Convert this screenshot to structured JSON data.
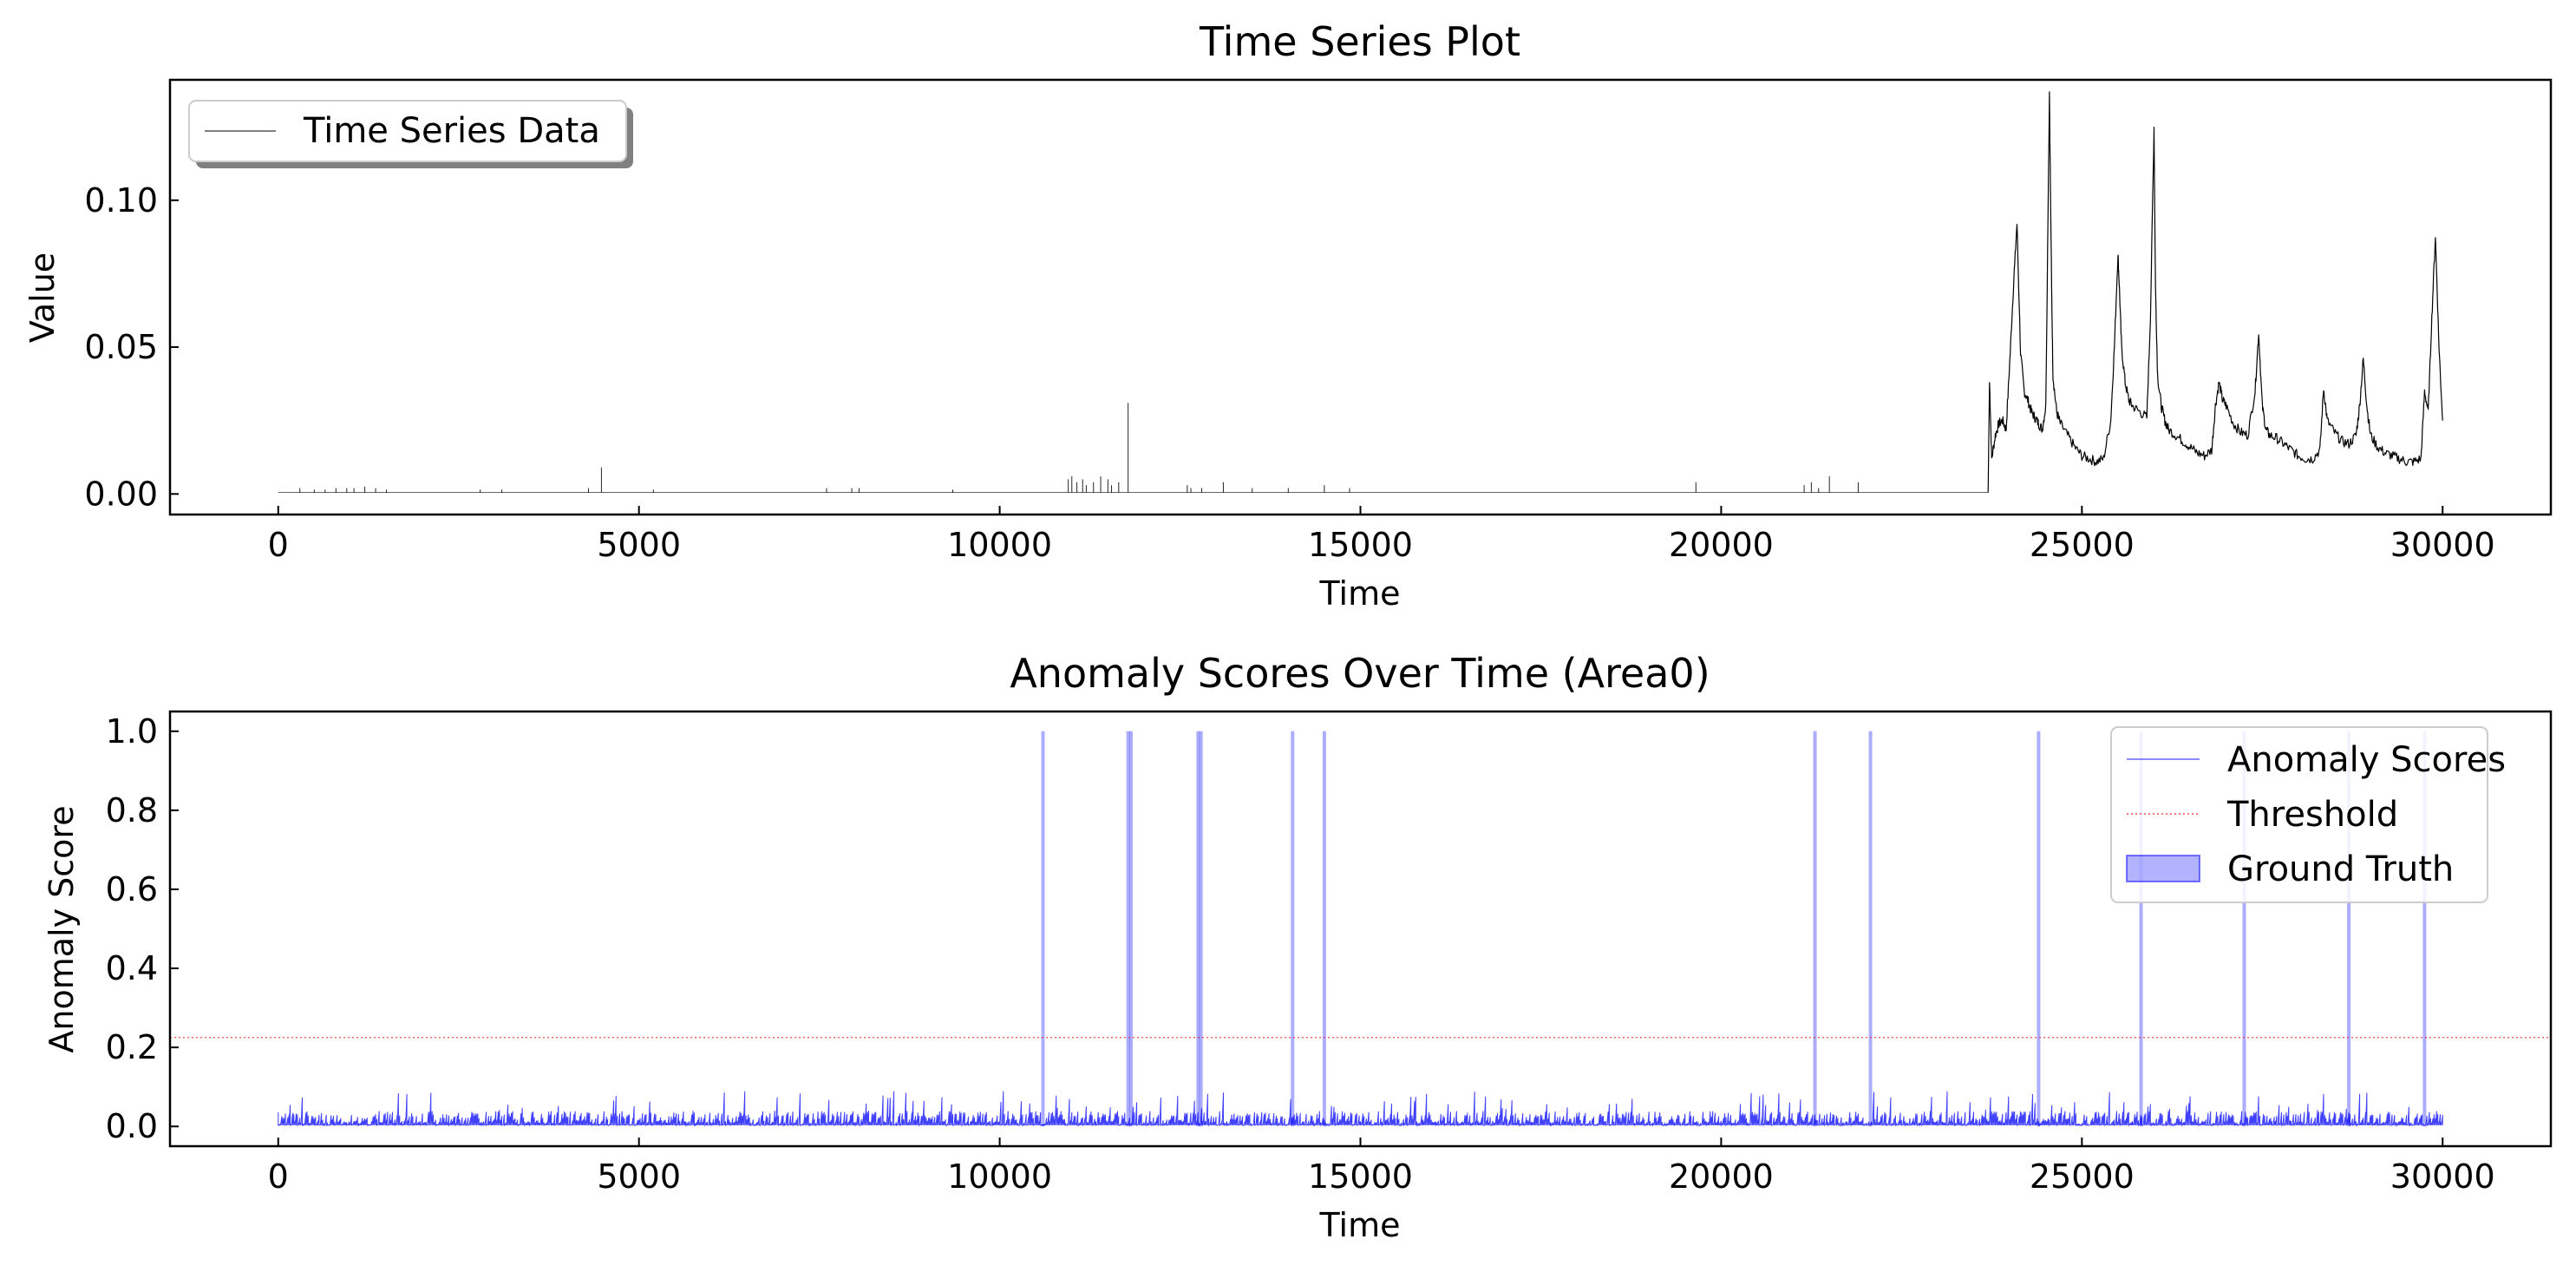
{
  "chart_data": [
    {
      "type": "line",
      "title": "Time Series Plot",
      "xlabel": "Time",
      "ylabel": "Value",
      "xlim": [
        -1500,
        31500
      ],
      "ylim": [
        -0.007,
        0.141
      ],
      "xticks": [
        0,
        5000,
        10000,
        15000,
        20000,
        25000,
        30000
      ],
      "yticks": [
        0.0,
        0.05,
        0.1
      ],
      "ytick_labels": [
        "0.00",
        "0.05",
        "0.10"
      ],
      "legend": {
        "position": "top-left",
        "shadow": true
      },
      "series": [
        {
          "name": "Time Series Data",
          "color": "#000000",
          "baseline": 0.0005,
          "spikes": [
            [
              300,
              0.002
            ],
            [
              500,
              0.0015
            ],
            [
              650,
              0.0015
            ],
            [
              800,
              0.002
            ],
            [
              950,
              0.002
            ],
            [
              1050,
              0.002
            ],
            [
              1200,
              0.0025
            ],
            [
              1350,
              0.002
            ],
            [
              1500,
              0.0015
            ],
            [
              2800,
              0.0015
            ],
            [
              3100,
              0.0015
            ],
            [
              4300,
              0.002
            ],
            [
              4480,
              0.009
            ],
            [
              5200,
              0.0015
            ],
            [
              7600,
              0.002
            ],
            [
              7950,
              0.002
            ],
            [
              8050,
              0.002
            ],
            [
              9350,
              0.0015
            ],
            [
              10950,
              0.005
            ],
            [
              11000,
              0.006
            ],
            [
              11070,
              0.004
            ],
            [
              11150,
              0.005
            ],
            [
              11200,
              0.003
            ],
            [
              11300,
              0.004
            ],
            [
              11400,
              0.006
            ],
            [
              11500,
              0.005
            ],
            [
              11550,
              0.003
            ],
            [
              11650,
              0.004
            ],
            [
              11780,
              0.031
            ],
            [
              12600,
              0.003
            ],
            [
              12650,
              0.002
            ],
            [
              12800,
              0.002
            ],
            [
              13100,
              0.004
            ],
            [
              13500,
              0.002
            ],
            [
              14000,
              0.002
            ],
            [
              14500,
              0.003
            ],
            [
              14850,
              0.002
            ],
            [
              19650,
              0.004
            ],
            [
              21150,
              0.003
            ],
            [
              21250,
              0.004
            ],
            [
              21350,
              0.002
            ],
            [
              21500,
              0.006
            ],
            [
              21900,
              0.004
            ]
          ],
          "x": [
            23700,
            23720,
            23750,
            23800,
            23850,
            23900,
            23950,
            24000,
            24050,
            24100,
            24150,
            24200,
            24250,
            24300,
            24350,
            24400,
            24450,
            24500,
            24550,
            24580,
            24600,
            24650,
            24700,
            24800,
            24900,
            25000,
            25100,
            25200,
            25300,
            25400,
            25450,
            25500,
            25520,
            25550,
            25600,
            25650,
            25700,
            25800,
            25900,
            25950,
            26000,
            26020,
            26050,
            26100,
            26150,
            26200,
            26300,
            26400,
            26500,
            26600,
            26700,
            26800,
            26850,
            26900,
            26950,
            27000,
            27100,
            27200,
            27300,
            27400,
            27450,
            27500,
            27550,
            27600,
            27700,
            27800,
            27900,
            28000,
            28100,
            28200,
            28300,
            28350,
            28400,
            28500,
            28600,
            28700,
            28800,
            28850,
            28900,
            28950,
            29000,
            29100,
            29200,
            29300,
            29400,
            29500,
            29600,
            29700,
            29750,
            29800,
            29850,
            29900,
            29950,
            30000
          ],
          "y": [
            0.0005,
            0.038,
            0.012,
            0.02,
            0.024,
            0.025,
            0.022,
            0.045,
            0.07,
            0.092,
            0.048,
            0.035,
            0.032,
            0.028,
            0.026,
            0.024,
            0.022,
            0.03,
            0.137,
            0.07,
            0.04,
            0.028,
            0.024,
            0.02,
            0.016,
            0.013,
            0.012,
            0.011,
            0.012,
            0.025,
            0.05,
            0.082,
            0.07,
            0.05,
            0.038,
            0.032,
            0.03,
            0.028,
            0.026,
            0.06,
            0.125,
            0.07,
            0.04,
            0.03,
            0.025,
            0.022,
            0.02,
            0.018,
            0.016,
            0.014,
            0.013,
            0.015,
            0.03,
            0.038,
            0.032,
            0.03,
            0.024,
            0.021,
            0.02,
            0.035,
            0.055,
            0.03,
            0.022,
            0.02,
            0.019,
            0.017,
            0.015,
            0.013,
            0.012,
            0.012,
            0.015,
            0.036,
            0.025,
            0.021,
            0.018,
            0.017,
            0.02,
            0.03,
            0.046,
            0.03,
            0.02,
            0.016,
            0.014,
            0.013,
            0.012,
            0.011,
            0.011,
            0.012,
            0.035,
            0.028,
            0.06,
            0.088,
            0.05,
            0.025
          ]
        }
      ]
    },
    {
      "type": "line",
      "title": "Anomaly Scores Over Time (Area0)",
      "xlabel": "Time",
      "ylabel": "Anomaly Score",
      "xlim": [
        -1500,
        31500
      ],
      "ylim": [
        -0.05,
        1.05
      ],
      "xticks": [
        0,
        5000,
        10000,
        15000,
        20000,
        25000,
        30000
      ],
      "yticks": [
        0.0,
        0.2,
        0.4,
        0.6,
        0.8,
        1.0
      ],
      "ytick_labels": [
        "0.0",
        "0.2",
        "0.4",
        "0.6",
        "0.8",
        "1.0"
      ],
      "legend": {
        "position": "top-right",
        "shadow": false
      },
      "series": [
        {
          "name": "Anomaly Scores",
          "color": "#0000ff",
          "x_range": [
            0,
            30000
          ],
          "typical_range": [
            0.0,
            0.09
          ]
        },
        {
          "name": "Threshold",
          "color": "#ff0000",
          "value": 0.225
        },
        {
          "name": "Ground Truth",
          "color": "#0000ff",
          "alpha": 0.3,
          "x": [
            10600,
            11780,
            11820,
            12750,
            12790,
            14060,
            14500,
            21300,
            22070,
            24400,
            25820,
            27250,
            28700,
            29750
          ],
          "value": 1.0
        }
      ]
    }
  ]
}
